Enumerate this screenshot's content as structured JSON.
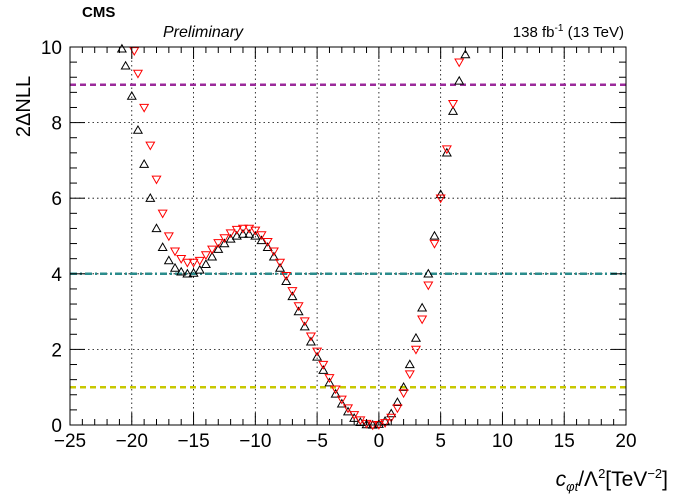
{
  "header": {
    "experiment": "CMS",
    "status": "Preliminary",
    "lumi_value": "138 fb",
    "lumi_exp": "-1",
    "lumi_energy": " (13 TeV)"
  },
  "axes": {
    "ylabel": "2ΔNLL",
    "xlabel_sym": "c",
    "xlabel_sub": "φt",
    "xlabel_mid": "/Λ",
    "xlabel_sup1": "2",
    "xlabel_unit": "[TeV",
    "xlabel_sup2": "−2",
    "xlabel_end": "]"
  },
  "chart_data": {
    "type": "scatter",
    "xlim": [
      -25,
      20
    ],
    "ylim": [
      0,
      10
    ],
    "xticks": [
      -25,
      -20,
      -15,
      -10,
      -5,
      0,
      5,
      10,
      15,
      20
    ],
    "yticks": [
      0,
      2,
      4,
      6,
      8,
      10
    ],
    "grid": true,
    "reference_lines": [
      {
        "y": 9,
        "color": "#9b2a9b",
        "style": "dashed"
      },
      {
        "y": 4,
        "color": "#2b8c8c",
        "style": "dashdot"
      },
      {
        "y": 1,
        "color": "#c8c800",
        "style": "dashed"
      }
    ],
    "series": [
      {
        "marker": "triangle-up-open",
        "color": "#000000",
        "x": [
          -20.8,
          -20.5,
          -20.0,
          -19.5,
          -19.0,
          -18.5,
          -18.0,
          -17.5,
          -17.0,
          -16.5,
          -16.0,
          -15.5,
          -15.0,
          -14.5,
          -14.0,
          -13.5,
          -13.0,
          -12.5,
          -12.0,
          -11.5,
          -11.0,
          -10.5,
          -10.0,
          -9.5,
          -9.0,
          -8.5,
          -8.0,
          -7.5,
          -7.0,
          -6.5,
          -6.0,
          -5.5,
          -5.0,
          -4.5,
          -4.0,
          -3.5,
          -3.0,
          -2.5,
          -2.0,
          -1.5,
          -1.0,
          -0.5,
          0.0,
          0.5,
          1.0,
          1.5,
          2.0,
          2.5,
          3.0,
          3.5,
          4.0,
          4.5,
          5.0,
          5.5,
          6.0,
          6.5,
          7.0
        ],
        "y": [
          9.95,
          9.5,
          8.7,
          7.8,
          6.9,
          6.0,
          5.2,
          4.7,
          4.35,
          4.15,
          4.05,
          4.0,
          4.02,
          4.1,
          4.25,
          4.45,
          4.65,
          4.8,
          4.92,
          5.0,
          5.05,
          5.05,
          5.0,
          4.88,
          4.7,
          4.45,
          4.15,
          3.8,
          3.4,
          3.0,
          2.6,
          2.2,
          1.8,
          1.45,
          1.12,
          0.82,
          0.56,
          0.35,
          0.18,
          0.07,
          0.01,
          0.0,
          0.02,
          0.1,
          0.3,
          0.6,
          1.0,
          1.6,
          2.3,
          3.1,
          4.0,
          5.0,
          6.1,
          7.2,
          8.3,
          9.1,
          9.8
        ]
      },
      {
        "marker": "triangle-down-open",
        "color": "#ff0000",
        "x": [
          -19.8,
          -19.5,
          -19.0,
          -18.5,
          -18.0,
          -17.5,
          -17.0,
          -16.5,
          -16.0,
          -15.5,
          -15.0,
          -14.5,
          -14.0,
          -13.5,
          -13.0,
          -12.5,
          -12.0,
          -11.5,
          -11.0,
          -10.5,
          -10.0,
          -9.5,
          -9.0,
          -8.5,
          -8.0,
          -7.5,
          -7.0,
          -6.5,
          -6.0,
          -5.5,
          -5.0,
          -4.5,
          -4.0,
          -3.5,
          -3.0,
          -2.5,
          -2.0,
          -1.5,
          -1.0,
          -0.5,
          0.0,
          0.5,
          1.0,
          1.5,
          2.0,
          2.5,
          3.0,
          3.5,
          4.0,
          4.5,
          5.0,
          5.5,
          6.0,
          6.5
        ],
        "y": [
          9.9,
          9.3,
          8.4,
          7.4,
          6.5,
          5.6,
          5.0,
          4.6,
          4.4,
          4.3,
          4.3,
          4.35,
          4.5,
          4.65,
          4.82,
          4.95,
          5.08,
          5.17,
          5.2,
          5.2,
          5.15,
          5.03,
          4.85,
          4.6,
          4.3,
          3.95,
          3.55,
          3.15,
          2.75,
          2.35,
          1.95,
          1.6,
          1.25,
          0.95,
          0.68,
          0.45,
          0.27,
          0.13,
          0.04,
          0.0,
          0.01,
          0.06,
          0.2,
          0.45,
          0.85,
          1.35,
          2.0,
          2.8,
          3.7,
          4.8,
          6.0,
          7.3,
          8.5,
          9.6
        ]
      }
    ]
  }
}
